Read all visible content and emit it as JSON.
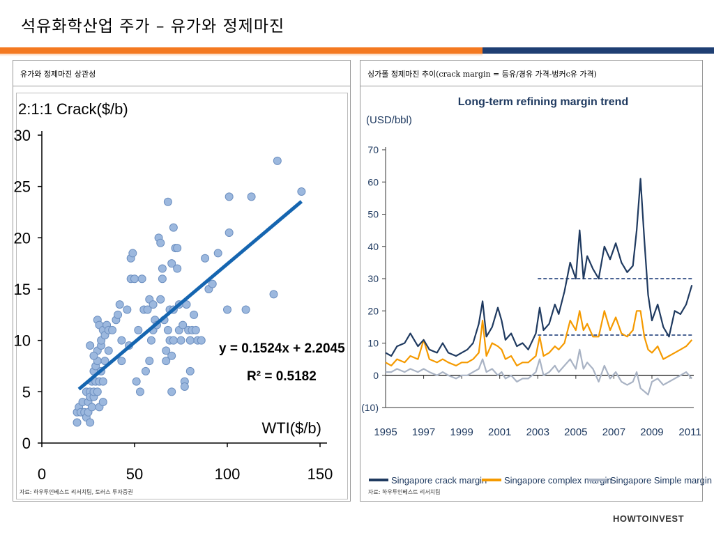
{
  "slide": {
    "title": "석유화학산업 주가 – 유가와 정제마진",
    "brand": "HOWTOINVEST"
  },
  "colors": {
    "accent_orange": "#f47920",
    "accent_navy": "#1f3f73"
  },
  "left_panel": {
    "header": "유가와 정제마진 상관성",
    "source": "자료: 하우투인베스트 리서치팀, 토러스 투자증권"
  },
  "right_panel": {
    "header": "싱가폴 정제마진 추이(crack margin = 등유/경유 가격-벙커c유 가격)",
    "source": "자료: 하우투인베스트 리서치팀"
  },
  "chart_data": [
    {
      "type": "scatter",
      "title": "",
      "ylabel": "2:1:1 Crack($/b)",
      "xlabel": "WTI($/b)",
      "xlim": [
        0,
        150
      ],
      "ylim": [
        0,
        30
      ],
      "xticks": [
        0,
        50,
        100,
        150
      ],
      "yticks": [
        0,
        5,
        10,
        15,
        20,
        25,
        30
      ],
      "grid": false,
      "annotations": [
        "y = 0.1524x + 2.2045",
        "R² = 0.5182"
      ],
      "trendline": {
        "slope": 0.1524,
        "intercept": 2.2045,
        "x_range": [
          20,
          140
        ],
        "color": "#1565b0"
      },
      "point_color": "#9cb8de",
      "points": [
        [
          19,
          3
        ],
        [
          19,
          2
        ],
        [
          20,
          3.5
        ],
        [
          21,
          3
        ],
        [
          22,
          4
        ],
        [
          23,
          3
        ],
        [
          24,
          5
        ],
        [
          24,
          2.5
        ],
        [
          25,
          4
        ],
        [
          25,
          3
        ],
        [
          26,
          5
        ],
        [
          26,
          2
        ],
        [
          26,
          4.5
        ],
        [
          27,
          6
        ],
        [
          27,
          3.5
        ],
        [
          28,
          7
        ],
        [
          28,
          4.5
        ],
        [
          28,
          5
        ],
        [
          29,
          6
        ],
        [
          29,
          7.5
        ],
        [
          30,
          8
        ],
        [
          30,
          9
        ],
        [
          30,
          5
        ],
        [
          31,
          3.5
        ],
        [
          31,
          6
        ],
        [
          32,
          7
        ],
        [
          32,
          9.5
        ],
        [
          33,
          4
        ],
        [
          33,
          6
        ],
        [
          34,
          8
        ],
        [
          26,
          9.5
        ],
        [
          28,
          8.5
        ],
        [
          30,
          12
        ],
        [
          31,
          11.5
        ],
        [
          32,
          10
        ],
        [
          33,
          11
        ],
        [
          34,
          10.5
        ],
        [
          35,
          11.5
        ],
        [
          36,
          11
        ],
        [
          36,
          9
        ],
        [
          38,
          11
        ],
        [
          40,
          12
        ],
        [
          41,
          12.5
        ],
        [
          42,
          13.5
        ],
        [
          43,
          8
        ],
        [
          43,
          10
        ],
        [
          46,
          13
        ],
        [
          47,
          9.5
        ],
        [
          48,
          16
        ],
        [
          48,
          18
        ],
        [
          49,
          18.5
        ],
        [
          50,
          16
        ],
        [
          51,
          6
        ],
        [
          52,
          11
        ],
        [
          53,
          5
        ],
        [
          54,
          16
        ],
        [
          55,
          13
        ],
        [
          56,
          7
        ],
        [
          57,
          13
        ],
        [
          58,
          14
        ],
        [
          58,
          8
        ],
        [
          59,
          10
        ],
        [
          60,
          13.5
        ],
        [
          60,
          11
        ],
        [
          61,
          12
        ],
        [
          62,
          11.5
        ],
        [
          63,
          20
        ],
        [
          64,
          14
        ],
        [
          64,
          19.5
        ],
        [
          65,
          17
        ],
        [
          65,
          16
        ],
        [
          66,
          12
        ],
        [
          67,
          9
        ],
        [
          67,
          8
        ],
        [
          68,
          23.5
        ],
        [
          68,
          11
        ],
        [
          69,
          10
        ],
        [
          69,
          13
        ],
        [
          70,
          17.5
        ],
        [
          70,
          8.5
        ],
        [
          70,
          5
        ],
        [
          71,
          13
        ],
        [
          71,
          21
        ],
        [
          71,
          10
        ],
        [
          72,
          19
        ],
        [
          73,
          17
        ],
        [
          73,
          19
        ],
        [
          74,
          13.5
        ],
        [
          74,
          11
        ],
        [
          75,
          10
        ],
        [
          76,
          11.5
        ],
        [
          77,
          6
        ],
        [
          77,
          5.5
        ],
        [
          78,
          13.5
        ],
        [
          79,
          11
        ],
        [
          80,
          10
        ],
        [
          80,
          7
        ],
        [
          81,
          11
        ],
        [
          82,
          12.5
        ],
        [
          83,
          11
        ],
        [
          84,
          10
        ],
        [
          86,
          10
        ],
        [
          88,
          18
        ],
        [
          90,
          15
        ],
        [
          92,
          15.5
        ],
        [
          95,
          18.5
        ],
        [
          100,
          13
        ],
        [
          101,
          20.5
        ],
        [
          101,
          24
        ],
        [
          110,
          13
        ],
        [
          113,
          24
        ],
        [
          125,
          14.5
        ],
        [
          127,
          27.5
        ],
        [
          140,
          24.5
        ]
      ]
    },
    {
      "type": "line",
      "title": "Long-term refining margin trend",
      "ylabel": "(USD/bbl)",
      "xlabel": "",
      "ylim": [
        -10,
        70
      ],
      "yticks": [
        -10,
        0,
        10,
        20,
        30,
        40,
        50,
        60,
        70
      ],
      "ytick_labels": [
        "(10)",
        "0",
        "10",
        "20",
        "30",
        "40",
        "50",
        "60",
        "70"
      ],
      "xlim": [
        1995,
        2011.2
      ],
      "xticks": [
        1995,
        1997,
        1999,
        2001,
        2003,
        2005,
        2007,
        2009,
        2011
      ],
      "grid": false,
      "legend": "bottom",
      "reference_lines": [
        {
          "value": 30,
          "from": 2003,
          "to": 2011.2,
          "style": "dashed",
          "color": "#4a6393"
        },
        {
          "value": 12.5,
          "from": 2003,
          "to": 2011.2,
          "style": "dashed",
          "color": "#4a6393"
        }
      ],
      "series": [
        {
          "name": "Singapore crack margin",
          "color": "#1f3a60",
          "x": [
            1995,
            1995.3,
            1995.6,
            1996,
            1996.3,
            1996.7,
            1997,
            1997.3,
            1997.7,
            1998,
            1998.3,
            1998.7,
            1999,
            1999.3,
            1999.6,
            1999.9,
            2000.1,
            2000.3,
            2000.6,
            2000.9,
            2001.1,
            2001.3,
            2001.6,
            2001.9,
            2002.2,
            2002.5,
            2002.9,
            2003.1,
            2003.3,
            2003.6,
            2003.9,
            2004.1,
            2004.4,
            2004.7,
            2005,
            2005.2,
            2005.4,
            2005.6,
            2005.9,
            2006.2,
            2006.5,
            2006.8,
            2007.1,
            2007.4,
            2007.7,
            2008,
            2008.2,
            2008.4,
            2008.6,
            2008.8,
            2009,
            2009.3,
            2009.6,
            2009.9,
            2010.2,
            2010.5,
            2010.8,
            2011.1
          ],
          "values": [
            7,
            6,
            9,
            10,
            13,
            9,
            11,
            8,
            7,
            10,
            7,
            6,
            7,
            8,
            10,
            16,
            23,
            12,
            15,
            21,
            17,
            11,
            13,
            9,
            10,
            8,
            13,
            21,
            14,
            16,
            22,
            19,
            26,
            35,
            30,
            45,
            30,
            37,
            33,
            30,
            40,
            36,
            41,
            35,
            32,
            34,
            45,
            61,
            42,
            25,
            17,
            22,
            15,
            12,
            20,
            19,
            22,
            28
          ]
        },
        {
          "name": "Singapore complex margin",
          "color": "#f59a00",
          "x": [
            1995,
            1995.3,
            1995.6,
            1996,
            1996.3,
            1996.7,
            1997,
            1997.3,
            1997.7,
            1998,
            1998.3,
            1998.7,
            1999,
            1999.3,
            1999.6,
            1999.9,
            2000.1,
            2000.3,
            2000.6,
            2000.9,
            2001.1,
            2001.3,
            2001.6,
            2001.9,
            2002.2,
            2002.5,
            2002.9,
            2003.1,
            2003.3,
            2003.6,
            2003.9,
            2004.1,
            2004.4,
            2004.7,
            2005,
            2005.2,
            2005.4,
            2005.6,
            2005.9,
            2006.2,
            2006.5,
            2006.8,
            2007.1,
            2007.4,
            2007.7,
            2008,
            2008.2,
            2008.4,
            2008.6,
            2008.8,
            2009,
            2009.3,
            2009.6,
            2009.9,
            2010.2,
            2010.5,
            2010.8,
            2011.1
          ],
          "values": [
            4,
            3,
            5,
            4,
            6,
            5,
            11,
            5,
            4,
            5,
            4,
            3,
            4,
            4,
            5,
            7,
            17,
            6,
            10,
            9,
            8,
            5,
            6,
            3,
            4,
            4,
            6,
            12,
            6,
            7,
            9,
            8,
            10,
            17,
            14,
            20,
            14,
            16,
            12,
            12,
            20,
            14,
            18,
            13,
            12,
            14,
            20,
            20,
            12,
            8,
            7,
            9,
            5,
            6,
            7,
            8,
            9,
            11
          ]
        },
        {
          "name": "Singapore Simple margin",
          "color": "#a9b3c4",
          "x": [
            1995,
            1995.3,
            1995.6,
            1996,
            1996.3,
            1996.7,
            1997,
            1997.3,
            1997.7,
            1998,
            1998.3,
            1998.7,
            1999,
            1999.3,
            1999.6,
            1999.9,
            2000.1,
            2000.3,
            2000.6,
            2000.9,
            2001.1,
            2001.3,
            2001.6,
            2001.9,
            2002.2,
            2002.5,
            2002.9,
            2003.1,
            2003.3,
            2003.6,
            2003.9,
            2004.1,
            2004.4,
            2004.7,
            2005,
            2005.2,
            2005.4,
            2005.6,
            2005.9,
            2006.2,
            2006.5,
            2006.8,
            2007.1,
            2007.4,
            2007.7,
            2008,
            2008.2,
            2008.4,
            2008.6,
            2008.8,
            2009,
            2009.3,
            2009.6,
            2009.9,
            2010.2,
            2010.5,
            2010.8,
            2011.1
          ],
          "values": [
            1,
            1,
            2,
            1,
            2,
            1,
            2,
            1,
            0,
            1,
            0,
            -1,
            0,
            0,
            1,
            2,
            5,
            1,
            2,
            0,
            1,
            -1,
            0,
            -2,
            -1,
            -1,
            1,
            5,
            0,
            1,
            3,
            1,
            3,
            5,
            2,
            8,
            2,
            4,
            2,
            -2,
            3,
            -1,
            1,
            -2,
            -3,
            -2,
            1,
            -4,
            -5,
            -6,
            -2,
            -1,
            -3,
            -2,
            -1,
            0,
            1,
            -1
          ]
        }
      ]
    }
  ]
}
